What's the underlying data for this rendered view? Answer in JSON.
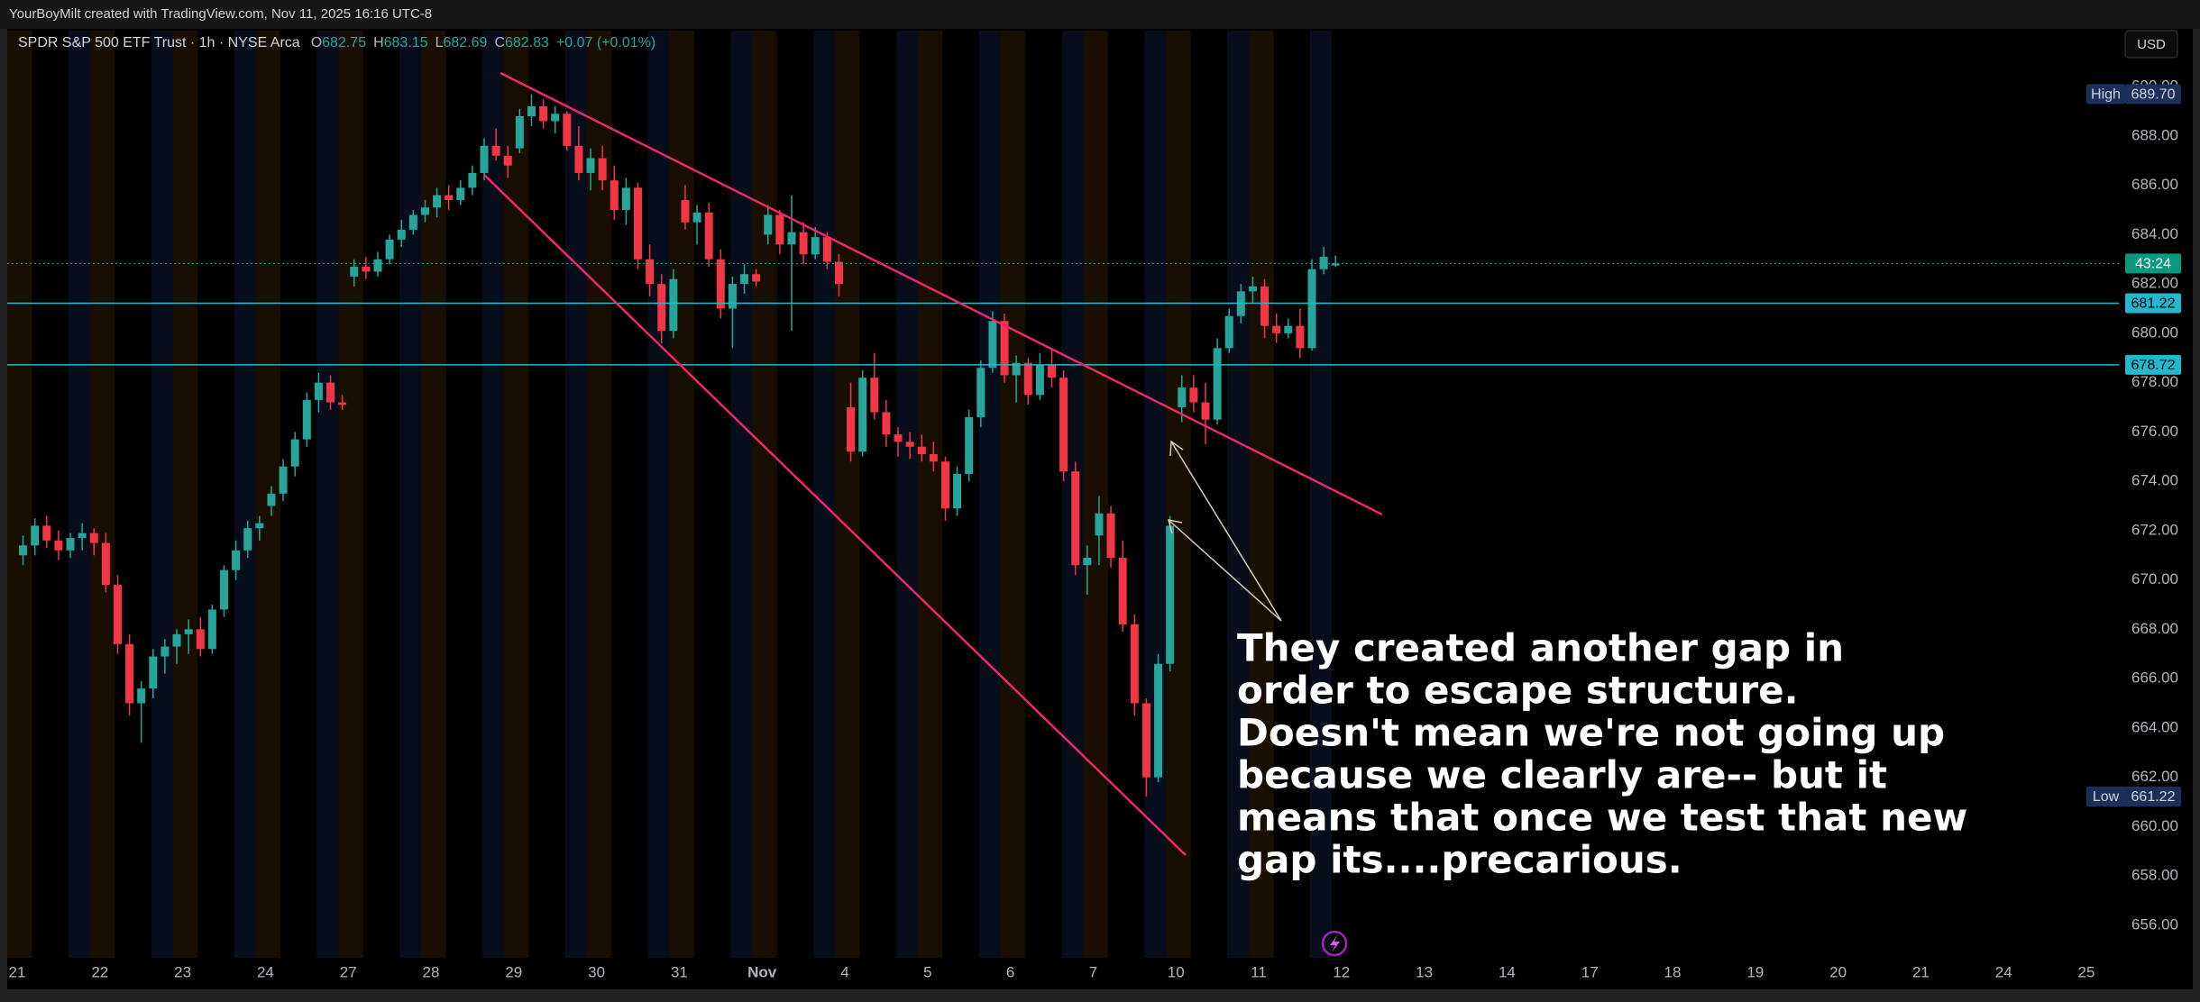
{
  "chart_data": {
    "type": "candlestick",
    "header": "YourBoyMilt created with TradingView.com, Nov 11, 2025 16:16 UTC-8",
    "title": "SPDR S&P 500 ETF Trust · 1h · NYSE Arca",
    "legend": [
      {
        "label": "O",
        "value": 682.75
      },
      {
        "label": "H",
        "value": 683.15
      },
      {
        "label": "L",
        "value": 682.69
      },
      {
        "label": "C",
        "value": 682.83
      }
    ],
    "change": "+0.07 (+0.01%)",
    "currency": "USD",
    "up_color": "#26a69a",
    "down_color": "#f23645",
    "ylim": [
      654.68,
      692.27
    ],
    "yticks": [
      {
        "value": 656,
        "label": "656.00"
      },
      {
        "value": 658,
        "label": "658.00"
      },
      {
        "value": 660,
        "label": "660.00"
      },
      {
        "value": 662,
        "label": "662.00"
      },
      {
        "value": 664,
        "label": "664.00"
      },
      {
        "value": 666,
        "label": "666.00"
      },
      {
        "value": 668,
        "label": "668.00"
      },
      {
        "value": 670,
        "label": "670.00"
      },
      {
        "value": 672,
        "label": "672.00"
      },
      {
        "value": 674,
        "label": "674.00"
      },
      {
        "value": 676,
        "label": "676.00"
      },
      {
        "value": 678,
        "label": "678.00"
      },
      {
        "value": 680,
        "label": "680.00"
      },
      {
        "value": 682,
        "label": "682.00"
      },
      {
        "value": 684,
        "label": "684.00"
      },
      {
        "value": 686,
        "label": "686.00"
      },
      {
        "value": 688,
        "label": "688.00"
      },
      {
        "value": 690,
        "label": "690.00"
      }
    ],
    "categories": [
      "21",
      "22",
      "23",
      "24",
      "27",
      "28",
      "29",
      "30",
      "31",
      "Nov",
      "4",
      "5",
      "6",
      "7",
      "10",
      "11",
      "12",
      "13",
      "14",
      "17",
      "18",
      "19",
      "20",
      "21",
      "24",
      "25"
    ],
    "candles": [
      [
        [
          671.0,
          671.8,
          670.6,
          671.4
        ],
        [
          671.4,
          672.5,
          671.0,
          672.2
        ],
        [
          672.2,
          672.6,
          671.3,
          671.6
        ],
        [
          671.6,
          672.0,
          670.8,
          671.2
        ],
        [
          671.2,
          671.9,
          670.9,
          671.7
        ],
        [
          671.7,
          672.3,
          671.2,
          671.9
        ],
        [
          671.9,
          672.1,
          671.0,
          671.5
        ]
      ],
      [
        [
          671.5,
          671.9,
          669.5,
          669.8
        ],
        [
          669.8,
          670.2,
          667.0,
          667.4
        ],
        [
          667.4,
          667.8,
          664.5,
          665.0
        ],
        [
          665.0,
          665.9,
          663.4,
          665.6
        ],
        [
          665.6,
          667.2,
          665.2,
          666.9
        ],
        [
          666.9,
          667.6,
          666.2,
          667.3
        ],
        [
          667.3,
          668.0,
          666.6,
          667.8
        ]
      ],
      [
        [
          667.8,
          668.4,
          667.0,
          668.0
        ],
        [
          668.0,
          668.5,
          666.9,
          667.2
        ],
        [
          667.2,
          669.0,
          667.0,
          668.8
        ],
        [
          668.8,
          670.6,
          668.5,
          670.4
        ],
        [
          670.4,
          671.6,
          670.0,
          671.2
        ],
        [
          671.2,
          672.4,
          670.9,
          672.1
        ],
        [
          672.1,
          672.6,
          671.6,
          672.3
        ]
      ],
      [
        [
          673.0,
          673.8,
          672.6,
          673.5
        ],
        [
          673.5,
          674.9,
          673.2,
          674.6
        ],
        [
          674.6,
          676.0,
          674.2,
          675.7
        ],
        [
          675.7,
          677.6,
          675.4,
          677.3
        ],
        [
          677.3,
          678.4,
          676.8,
          678.0
        ],
        [
          678.0,
          678.3,
          676.9,
          677.2
        ],
        [
          677.2,
          677.5,
          676.9,
          677.1
        ]
      ],
      [
        [
          682.3,
          683.0,
          681.9,
          682.7
        ],
        [
          682.7,
          683.1,
          682.2,
          682.5
        ],
        [
          682.5,
          683.3,
          682.3,
          683.0
        ],
        [
          683.0,
          684.0,
          682.8,
          683.8
        ],
        [
          683.8,
          684.6,
          683.5,
          684.2
        ],
        [
          684.2,
          685.0,
          684.0,
          684.8
        ],
        [
          684.8,
          685.4,
          684.5,
          685.1
        ]
      ],
      [
        [
          685.1,
          685.9,
          684.7,
          685.6
        ],
        [
          685.6,
          686.0,
          685.0,
          685.4
        ],
        [
          685.4,
          686.2,
          685.2,
          685.9
        ],
        [
          685.9,
          686.8,
          685.6,
          686.5
        ],
        [
          686.5,
          687.9,
          686.2,
          687.6
        ],
        [
          687.6,
          688.3,
          687.0,
          687.2
        ],
        [
          687.2,
          687.6,
          686.3,
          686.8
        ]
      ],
      [
        [
          687.5,
          689.1,
          687.3,
          688.8
        ],
        [
          688.8,
          689.7,
          688.4,
          689.2
        ],
        [
          689.2,
          689.5,
          688.3,
          688.6
        ],
        [
          688.6,
          689.2,
          688.1,
          688.9
        ],
        [
          688.9,
          689.0,
          687.4,
          687.6
        ],
        [
          687.6,
          688.4,
          686.2,
          686.5
        ],
        [
          686.5,
          687.5,
          685.8,
          687.1
        ]
      ],
      [
        [
          687.1,
          687.6,
          685.8,
          686.2
        ],
        [
          686.2,
          686.8,
          684.6,
          685.0
        ],
        [
          685.0,
          686.3,
          684.4,
          685.9
        ],
        [
          685.9,
          686.1,
          682.6,
          683.0
        ],
        [
          683.0,
          683.6,
          681.5,
          682.0
        ],
        [
          682.0,
          682.4,
          679.6,
          680.1
        ],
        [
          680.1,
          682.6,
          679.8,
          682.2
        ]
      ],
      [
        [
          685.4,
          686.0,
          684.2,
          684.5
        ],
        [
          684.5,
          685.2,
          683.6,
          684.9
        ],
        [
          684.9,
          685.3,
          682.7,
          683.0
        ],
        [
          683.0,
          683.4,
          680.6,
          681.0
        ],
        [
          681.0,
          682.3,
          679.4,
          682.0
        ],
        [
          682.0,
          682.8,
          681.6,
          682.4
        ],
        [
          682.4,
          682.6,
          681.9,
          682.1
        ]
      ],
      [
        [
          684.0,
          685.2,
          683.6,
          684.8
        ],
        [
          684.8,
          685.0,
          683.2,
          683.6
        ],
        [
          683.6,
          685.6,
          680.1,
          684.1
        ],
        [
          684.1,
          684.5,
          682.8,
          683.2
        ],
        [
          683.2,
          684.3,
          683.0,
          683.9
        ],
        [
          683.9,
          684.1,
          682.6,
          682.9
        ],
        [
          682.9,
          683.2,
          681.5,
          682.0
        ]
      ],
      [
        [
          677.0,
          678.0,
          674.8,
          675.2
        ],
        [
          675.2,
          678.5,
          675.0,
          678.2
        ],
        [
          678.2,
          679.2,
          676.5,
          676.8
        ],
        [
          676.8,
          677.3,
          675.4,
          675.9
        ],
        [
          675.9,
          676.2,
          675.0,
          675.6
        ],
        [
          675.6,
          676.0,
          674.9,
          675.4
        ],
        [
          675.4,
          675.9,
          674.8,
          675.1
        ]
      ],
      [
        [
          675.1,
          675.6,
          674.4,
          674.8
        ],
        [
          674.8,
          675.0,
          672.4,
          672.9
        ],
        [
          672.9,
          674.6,
          672.6,
          674.3
        ],
        [
          674.3,
          676.9,
          674.0,
          676.6
        ],
        [
          676.6,
          678.9,
          676.2,
          678.6
        ],
        [
          678.6,
          680.9,
          678.4,
          680.5
        ],
        [
          680.5,
          680.8,
          678.0,
          678.3
        ]
      ],
      [
        [
          678.3,
          679.1,
          677.2,
          678.8
        ],
        [
          678.8,
          679.0,
          677.1,
          677.5
        ],
        [
          677.5,
          679.2,
          677.3,
          678.7
        ],
        [
          678.7,
          679.4,
          677.8,
          678.2
        ],
        [
          678.2,
          678.5,
          674.0,
          674.4
        ],
        [
          674.4,
          674.8,
          670.2,
          670.6
        ],
        [
          670.6,
          671.4,
          669.4,
          670.9
        ]
      ],
      [
        [
          671.8,
          673.4,
          670.6,
          672.7
        ],
        [
          672.7,
          673.0,
          670.5,
          670.9
        ],
        [
          670.9,
          671.6,
          667.9,
          668.2
        ],
        [
          668.2,
          668.6,
          664.5,
          665.0
        ],
        [
          665.0,
          665.2,
          661.22,
          662.0
        ],
        [
          662.0,
          667.0,
          661.8,
          666.6
        ],
        [
          666.6,
          672.6,
          666.3,
          672.2
        ]
      ],
      [
        [
          677.0,
          678.3,
          676.4,
          677.8
        ],
        [
          677.8,
          678.3,
          676.8,
          677.2
        ],
        [
          677.2,
          678.0,
          675.5,
          676.5
        ],
        [
          676.5,
          679.8,
          676.3,
          679.4
        ],
        [
          679.4,
          681.0,
          679.2,
          680.7
        ],
        [
          680.7,
          682.0,
          680.4,
          681.7
        ],
        [
          681.7,
          682.3,
          681.2,
          681.9
        ]
      ],
      [
        [
          681.9,
          682.2,
          679.8,
          680.3
        ],
        [
          680.3,
          680.8,
          679.6,
          680.0
        ],
        [
          680.0,
          680.6,
          679.8,
          680.3
        ],
        [
          680.3,
          681.0,
          679.0,
          679.4
        ],
        [
          679.4,
          683.0,
          679.3,
          682.6
        ],
        [
          682.6,
          683.5,
          682.4,
          683.1
        ],
        [
          682.75,
          683.15,
          682.69,
          682.83
        ]
      ],
      [],
      [],
      [],
      [],
      [],
      [],
      [],
      [],
      [],
      []
    ],
    "price_lines": [
      {
        "value": 681.22,
        "color": "#22b8cf"
      },
      {
        "value": 678.72,
        "color": "#22b8cf"
      }
    ],
    "countdown": "43:24",
    "high": {
      "label": "High",
      "value": 689.7,
      "value_label": "689.70"
    },
    "low": {
      "label": "Low",
      "value": 661.22
    },
    "annotation": [
      "They created another gap in",
      "order to escape structure.",
      "Doesn't mean we're not going up",
      "because we clearly are-- but it",
      "means that once we test that new",
      "gap its....precarious."
    ]
  }
}
